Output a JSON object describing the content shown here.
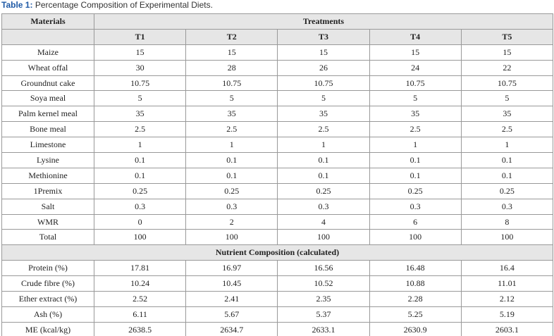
{
  "caption": {
    "label": "Table 1:",
    "text": "Percentage Composition of Experimental Diets."
  },
  "table": {
    "header": [
      "Materials",
      "Treatments"
    ],
    "columns": [
      "T1",
      "T2",
      "T3",
      "T4",
      "T5"
    ],
    "rows": [
      [
        "Maize",
        "15",
        "15",
        "15",
        "15",
        "15"
      ],
      [
        "Wheat offal",
        "30",
        "28",
        "26",
        "24",
        "22"
      ],
      [
        "Groundnut cake",
        "10.75",
        "10.75",
        "10.75",
        "10.75",
        "10.75"
      ],
      [
        "Soya meal",
        "5",
        "5",
        "5",
        "5",
        "5"
      ],
      [
        "Palm kernel meal",
        "35",
        "35",
        "35",
        "35",
        "35"
      ],
      [
        "Bone meal",
        "2.5",
        "2.5",
        "2.5",
        "2.5",
        "2.5"
      ],
      [
        "Limestone",
        "1",
        "1",
        "1",
        "1",
        "1"
      ],
      [
        "Lysine",
        "0.1",
        "0.1",
        "0.1",
        "0.1",
        "0.1"
      ],
      [
        "Methionine",
        "0.1",
        "0.1",
        "0.1",
        "0.1",
        "0.1"
      ],
      [
        "1Premix",
        "0.25",
        "0.25",
        "0.25",
        "0.25",
        "0.25"
      ],
      [
        "Salt",
        "0.3",
        "0.3",
        "0.3",
        "0.3",
        "0.3"
      ],
      [
        "WMR",
        "0",
        "2",
        "4",
        "6",
        "8"
      ],
      [
        "Total",
        "100",
        "100",
        "100",
        "100",
        "100"
      ]
    ],
    "section": "Nutrient Composition (calculated)",
    "nutrient_rows": [
      [
        "Protein (%)",
        "17.81",
        "16.97",
        "16.56",
        "16.48",
        "16.4"
      ],
      [
        "Crude fibre (%)",
        "10.24",
        "10.45",
        "10.52",
        "10.88",
        "11.01"
      ],
      [
        "Ether extract (%)",
        "2.52",
        "2.41",
        "2.35",
        "2.28",
        "2.12"
      ],
      [
        "Ash (%)",
        "6.11",
        "5.67",
        "5.37",
        "5.25",
        "5.19"
      ],
      [
        "ME (kcal/kg)",
        "2638.5",
        "2634.7",
        "2633.1",
        "2630.9",
        "2603.1"
      ]
    ]
  }
}
